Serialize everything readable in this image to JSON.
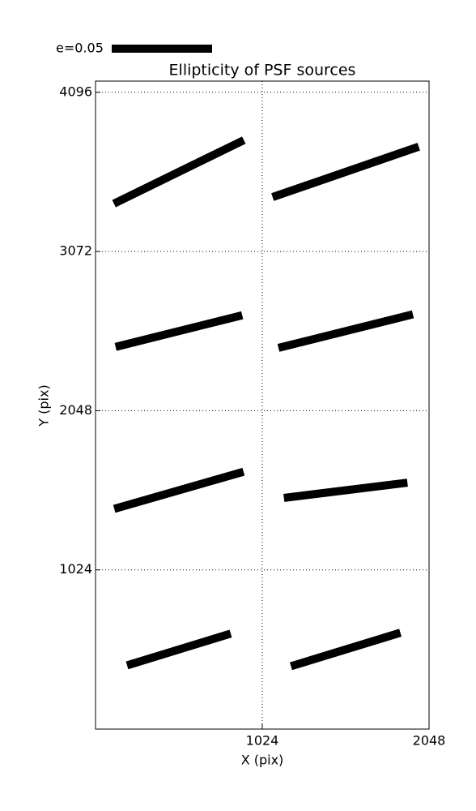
{
  "chart_data": {
    "type": "whisker",
    "title": "Ellipticity of PSF sources",
    "x_label": "X (pix)",
    "y_label": "Y (pix)",
    "xlim": [
      0,
      2048
    ],
    "ylim": [
      0,
      4168
    ],
    "xticks": [
      1024,
      2048
    ],
    "yticks": [
      1024,
      2048,
      3072,
      4096
    ],
    "grid": true,
    "color": "#000000",
    "key": {
      "label": "e=0.05",
      "value": 0.05
    },
    "points": {
      "x": [
        512,
        1536,
        512,
        1536,
        512,
        1536,
        512,
        1536
      ],
      "y": [
        3584,
        3584,
        2560,
        2560,
        1536,
        1536,
        512,
        512
      ],
      "e": [
        0.072,
        0.077,
        0.065,
        0.069,
        0.067,
        0.062,
        0.054,
        0.057
      ],
      "angle": [
        26,
        19,
        14,
        14,
        16,
        7,
        17,
        17
      ]
    }
  }
}
